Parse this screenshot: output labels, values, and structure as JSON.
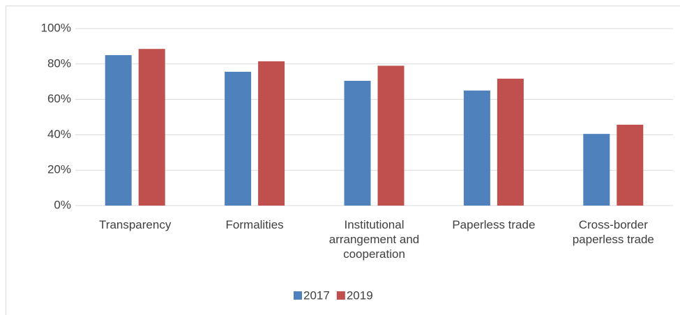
{
  "chart_data": {
    "type": "bar",
    "categories": [
      "Transparency",
      "Formalities",
      "Institutional arrangement and cooperation",
      "Paperless trade",
      "Cross-border paperless trade"
    ],
    "series": [
      {
        "name": "2017",
        "color": "#4f81bd",
        "values": [
          85,
          75.6,
          70.5,
          65,
          40.5
        ]
      },
      {
        "name": "2019",
        "color": "#c0504d",
        "values": [
          88.5,
          81.5,
          79,
          71.7,
          45.7
        ]
      }
    ],
    "ylim": [
      0,
      100
    ],
    "yticks": [
      {
        "value": 0,
        "label": "0%"
      },
      {
        "value": 20,
        "label": "20%"
      },
      {
        "value": 40,
        "label": "40%"
      },
      {
        "value": 60,
        "label": "60%"
      },
      {
        "value": 80,
        "label": "80%"
      },
      {
        "value": 100,
        "label": "100%"
      }
    ],
    "grid": true,
    "legend": "bottom"
  }
}
